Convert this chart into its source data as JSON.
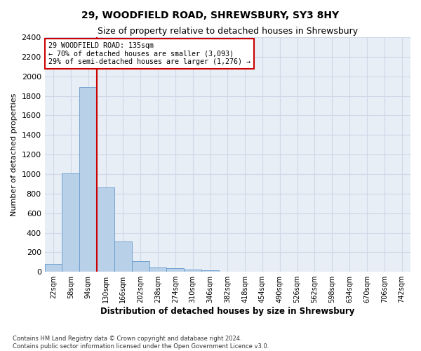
{
  "title": "29, WOODFIELD ROAD, SHREWSBURY, SY3 8HY",
  "subtitle": "Size of property relative to detached houses in Shrewsbury",
  "xlabel": "Distribution of detached houses by size in Shrewsbury",
  "ylabel": "Number of detached properties",
  "footnote1": "Contains HM Land Registry data © Crown copyright and database right 2024.",
  "footnote2": "Contains public sector information licensed under the Open Government Licence v3.0.",
  "bin_labels": [
    "22sqm",
    "58sqm",
    "94sqm",
    "130sqm",
    "166sqm",
    "202sqm",
    "238sqm",
    "274sqm",
    "310sqm",
    "346sqm",
    "382sqm",
    "418sqm",
    "454sqm",
    "490sqm",
    "526sqm",
    "562sqm",
    "598sqm",
    "634sqm",
    "670sqm",
    "706sqm",
    "742sqm"
  ],
  "bin_values": [
    80,
    1010,
    1890,
    860,
    310,
    110,
    45,
    40,
    25,
    15,
    5,
    3,
    1,
    1,
    0,
    0,
    0,
    0,
    0,
    0,
    0
  ],
  "bar_color": "#b8d0e8",
  "bar_edge_color": "#6699cc",
  "annotation_line1": "29 WOODFIELD ROAD: 135sqm",
  "annotation_line2": "← 70% of detached houses are smaller (3,093)",
  "annotation_line3": "29% of semi-detached houses are larger (1,276) →",
  "vline_color": "#cc0000",
  "ylim": [
    0,
    2400
  ],
  "yticks": [
    0,
    200,
    400,
    600,
    800,
    1000,
    1200,
    1400,
    1600,
    1800,
    2000,
    2200,
    2400
  ],
  "annotation_box_color": "#ffffff",
  "annotation_box_edge": "#cc0000",
  "grid_color": "#d0d8e8",
  "background_color": "#e8eef5",
  "title_fontsize": 10,
  "subtitle_fontsize": 9
}
